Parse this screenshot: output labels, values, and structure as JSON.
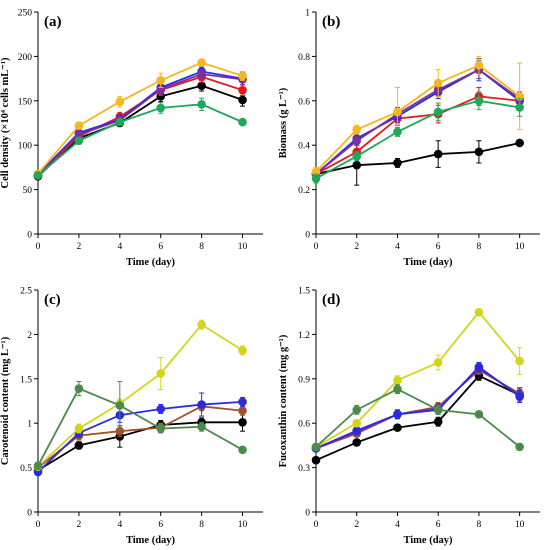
{
  "chart_data": [
    {
      "panel": "(a)",
      "type": "line",
      "xlabel": "Time (day)",
      "ylabel": "Cell density (×10⁴ cells mL⁻¹)",
      "xlim": [
        0,
        11
      ],
      "ylim": [
        0,
        250
      ],
      "xticks": [
        "0",
        "2",
        "4",
        "6",
        "8",
        "10"
      ],
      "yticks": [
        "0",
        "50",
        "100",
        "150",
        "200",
        "250"
      ],
      "x": [
        0,
        2,
        4,
        6,
        8,
        10
      ],
      "series": [
        {
          "color": "#000000",
          "values": [
            65,
            108,
            125,
            155,
            167,
            151
          ],
          "errors": [
            3,
            4,
            4,
            6,
            6,
            7
          ]
        },
        {
          "color": "#e31a1c",
          "values": [
            66,
            110,
            132,
            162,
            177,
            162
          ],
          "errors": [
            3,
            4,
            5,
            6,
            6,
            6
          ]
        },
        {
          "color": "#2b2bdc",
          "values": [
            67,
            114,
            129,
            165,
            183,
            175
          ],
          "errors": [
            3,
            4,
            5,
            5,
            5,
            7
          ]
        },
        {
          "color": "#7b2fa0",
          "values": [
            66,
            112,
            128,
            163,
            180,
            174
          ],
          "errors": [
            3,
            4,
            5,
            6,
            5,
            6
          ]
        },
        {
          "color": "#f5b61e",
          "values": [
            68,
            122,
            149,
            173,
            193,
            178
          ],
          "errors": [
            3,
            4,
            6,
            8,
            4,
            5
          ]
        },
        {
          "color": "#1ea85a",
          "values": [
            66,
            105,
            126,
            142,
            146,
            126
          ],
          "errors": [
            3,
            4,
            4,
            6,
            7,
            3
          ]
        }
      ]
    },
    {
      "panel": "(b)",
      "type": "line",
      "xlabel": "Time (day)",
      "ylabel": "Biomass (g L⁻¹)",
      "xlim": [
        0,
        11
      ],
      "ylim": [
        0,
        1.0
      ],
      "xticks": [
        "0",
        "2",
        "4",
        "6",
        "8",
        "10"
      ],
      "yticks": [
        "0",
        "0.2",
        "0.4",
        "0.6",
        "0.8",
        "1"
      ],
      "x": [
        0,
        2,
        4,
        6,
        8,
        10
      ],
      "series": [
        {
          "color": "#000000",
          "values": [
            0.27,
            0.31,
            0.32,
            0.36,
            0.37,
            0.41
          ],
          "errors": [
            0.02,
            0.09,
            0.02,
            0.06,
            0.05,
            0.01
          ]
        },
        {
          "color": "#e31a1c",
          "values": [
            0.27,
            0.37,
            0.52,
            0.54,
            0.62,
            0.6
          ],
          "errors": [
            0.02,
            0.03,
            0.03,
            0.04,
            0.04,
            0.03
          ]
        },
        {
          "color": "#2b2bdc",
          "values": [
            0.27,
            0.43,
            0.53,
            0.64,
            0.74,
            0.6
          ],
          "errors": [
            0.02,
            0.02,
            0.03,
            0.03,
            0.05,
            0.03
          ]
        },
        {
          "color": "#7b2fa0",
          "values": [
            0.27,
            0.42,
            0.54,
            0.65,
            0.74,
            0.61
          ],
          "errors": [
            0.02,
            0.02,
            0.03,
            0.03,
            0.04,
            0.03
          ]
        },
        {
          "color": "#f5b61e",
          "values": [
            0.28,
            0.47,
            0.55,
            0.68,
            0.76,
            0.62
          ],
          "errors": [
            0.02,
            0.02,
            0.11,
            0.06,
            0.04,
            0.15
          ]
        },
        {
          "color": "#1ea85a",
          "values": [
            0.25,
            0.35,
            0.46,
            0.55,
            0.6,
            0.57
          ],
          "errors": [
            0.02,
            0.02,
            0.02,
            0.04,
            0.04,
            0.04
          ]
        }
      ]
    },
    {
      "panel": "(c)",
      "type": "line",
      "xlabel": "Time (day)",
      "ylabel": "Carotenoid content (mg L⁻¹)",
      "xlim": [
        0,
        11
      ],
      "ylim": [
        0,
        2.5
      ],
      "xticks": [
        "0",
        "2",
        "4",
        "6",
        "8",
        "10"
      ],
      "yticks": [
        "0",
        "0.5",
        "1",
        "1.5",
        "2",
        "2.5"
      ],
      "x": [
        0,
        2,
        4,
        6,
        8,
        10
      ],
      "series": [
        {
          "color": "#000000",
          "values": [
            0.47,
            0.75,
            0.85,
            0.98,
            1.01,
            1.01
          ],
          "errors": [
            0.03,
            0.04,
            0.12,
            0.05,
            0.05,
            0.1
          ]
        },
        {
          "color": "#a0522d",
          "values": [
            0.5,
            0.86,
            0.91,
            0.95,
            1.19,
            1.14
          ],
          "errors": [
            0.03,
            0.05,
            0.06,
            0.05,
            0.05,
            0.05
          ]
        },
        {
          "color": "#2b2bdc",
          "values": [
            0.45,
            0.89,
            1.09,
            1.16,
            1.21,
            1.24
          ],
          "errors": [
            0.03,
            0.05,
            0.08,
            0.05,
            0.13,
            0.05
          ]
        },
        {
          "color": "#d4d41e",
          "values": [
            0.51,
            0.94,
            1.22,
            1.56,
            2.11,
            1.82
          ],
          "errors": [
            0.03,
            0.05,
            0.05,
            0.18,
            0.05,
            0.05
          ]
        },
        {
          "color": "#4a8a4a",
          "values": [
            0.52,
            1.39,
            1.2,
            0.94,
            0.96,
            0.7
          ],
          "errors": [
            0.04,
            0.08,
            0.27,
            0.05,
            0.05,
            0.03
          ]
        }
      ]
    },
    {
      "panel": "(d)",
      "type": "line",
      "xlabel": "Time (day)",
      "ylabel": "Fucoxanthin content (mg g⁻¹)",
      "xlim": [
        0,
        11
      ],
      "ylim": [
        0,
        1.5
      ],
      "xticks": [
        "0",
        "2",
        "4",
        "6",
        "8",
        "10"
      ],
      "yticks": [
        "0",
        "0.3",
        "0.6",
        "0.9",
        "1.2",
        "1.5"
      ],
      "x": [
        0,
        2,
        4,
        6,
        8,
        10
      ],
      "series": [
        {
          "color": "#000000",
          "values": [
            0.35,
            0.47,
            0.57,
            0.61,
            0.92,
            0.79
          ],
          "errors": [
            0.02,
            0.02,
            0.02,
            0.03,
            0.03,
            0.05
          ]
        },
        {
          "color": "#a0522d",
          "values": [
            0.43,
            0.53,
            0.66,
            0.71,
            0.96,
            0.8
          ],
          "errors": [
            0.02,
            0.02,
            0.03,
            0.03,
            0.03,
            0.04
          ]
        },
        {
          "color": "#7b2fa0",
          "values": [
            0.43,
            0.54,
            0.66,
            0.7,
            0.97,
            0.79
          ],
          "errors": [
            0.02,
            0.02,
            0.03,
            0.03,
            0.03,
            0.04
          ]
        },
        {
          "color": "#2b2bdc",
          "values": [
            0.43,
            0.55,
            0.66,
            0.69,
            0.98,
            0.78
          ],
          "errors": [
            0.02,
            0.02,
            0.03,
            0.03,
            0.03,
            0.04
          ]
        },
        {
          "color": "#d4d41e",
          "values": [
            0.44,
            0.6,
            0.89,
            1.01,
            1.35,
            1.02
          ],
          "errors": [
            0.02,
            0.02,
            0.03,
            0.05,
            0.02,
            0.09
          ]
        },
        {
          "color": "#4a8a4a",
          "values": [
            0.44,
            0.69,
            0.83,
            0.69,
            0.66,
            0.44
          ],
          "errors": [
            0.02,
            0.03,
            0.03,
            0.03,
            0.02,
            0.02
          ]
        }
      ]
    }
  ]
}
